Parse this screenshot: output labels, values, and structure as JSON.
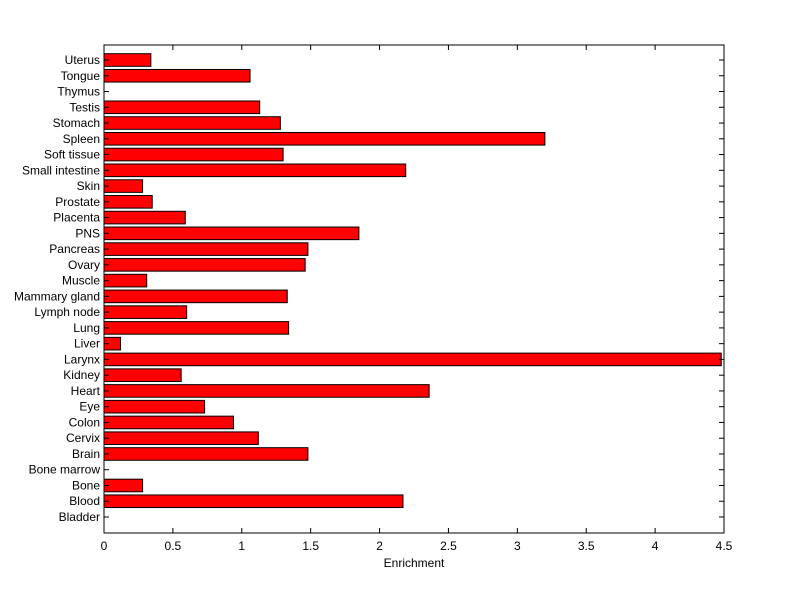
{
  "chart_data": {
    "type": "bar",
    "orientation": "horizontal",
    "title": "",
    "xlabel": "Enrichment",
    "ylabel": "",
    "xlim": [
      0,
      4.5
    ],
    "xticks": [
      "0",
      "0.5",
      "1",
      "1.5",
      "2",
      "2.5",
      "3",
      "3.5",
      "4",
      "4.5"
    ],
    "grid": false,
    "bar_color": "#ff0000",
    "edge_color": "#000000",
    "categories": [
      "Bladder",
      "Blood",
      "Bone",
      "Bone marrow",
      "Brain",
      "Cervix",
      "Colon",
      "Eye",
      "Heart",
      "Kidney",
      "Larynx",
      "Liver",
      "Lung",
      "Lymph node",
      "Mammary gland",
      "Muscle",
      "Ovary",
      "Pancreas",
      "PNS",
      "Placenta",
      "Prostate",
      "Skin",
      "Small intestine",
      "Soft tissue",
      "Spleen",
      "Stomach",
      "Testis",
      "Thymus",
      "Tongue",
      "Uterus"
    ],
    "values": [
      0,
      2.17,
      0.28,
      0,
      1.48,
      1.12,
      0.94,
      0.73,
      2.36,
      0.56,
      4.48,
      0.12,
      1.34,
      0.6,
      1.33,
      0.31,
      1.46,
      1.48,
      1.85,
      0.59,
      0.35,
      0.28,
      2.19,
      1.3,
      3.2,
      1.28,
      1.13,
      0,
      1.06,
      0.34
    ]
  }
}
